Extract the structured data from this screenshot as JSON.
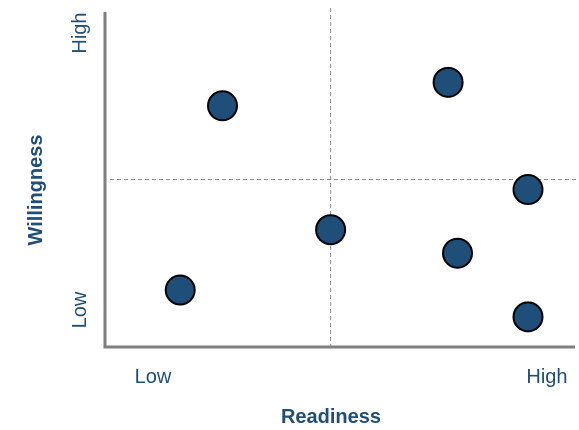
{
  "chart_data": {
    "type": "scatter",
    "title": "",
    "xlabel": "Readiness",
    "ylabel": "Willingness",
    "xlim": [
      0,
      10
    ],
    "ylim": [
      0,
      10
    ],
    "x_tick_labels": {
      "low": "Low",
      "high": "High"
    },
    "y_tick_labels": {
      "low": "Low",
      "high": "High"
    },
    "quadrant_dividers": {
      "x": 4.8,
      "y": 5.0
    },
    "grid": false,
    "legend": "none",
    "colors": {
      "point_fill": "#1f4e79",
      "point_stroke": "#000000",
      "axis": "#7f7f7f",
      "text": "#1f4e79",
      "divider": "#8c8c8c"
    },
    "points": [
      {
        "x": 2.5,
        "y": 7.2
      },
      {
        "x": 7.3,
        "y": 7.9
      },
      {
        "x": 9.0,
        "y": 4.7
      },
      {
        "x": 4.8,
        "y": 3.5
      },
      {
        "x": 7.5,
        "y": 2.8
      },
      {
        "x": 1.6,
        "y": 1.7
      },
      {
        "x": 9.0,
        "y": 0.9
      }
    ]
  }
}
